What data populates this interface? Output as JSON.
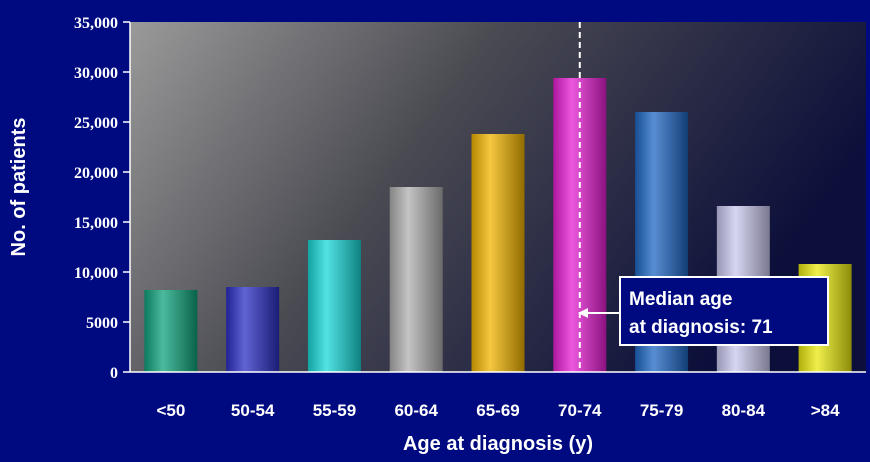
{
  "chart_data": {
    "type": "bar",
    "categories": [
      "<50",
      "50-54",
      "55-59",
      "60-64",
      "65-69",
      "70-74",
      "75-79",
      "80-84",
      ">84"
    ],
    "values": [
      8200,
      8500,
      13200,
      18500,
      23800,
      29400,
      26000,
      16600,
      10800
    ],
    "bar_colors": [
      "#0fa37c",
      "#2b2fc4",
      "#19d8d8",
      "#b0b0b0",
      "#f2b400",
      "#e61fd3",
      "#1f68c4",
      "#c9c8ee",
      "#eaea10"
    ],
    "xlabel": "Age at diagnosis (y)",
    "ylabel": "No. of patients",
    "ylim": [
      0,
      35000
    ],
    "yticks": [
      {
        "value": 0,
        "label": "0"
      },
      {
        "value": 5000,
        "label": "5000"
      },
      {
        "value": 10000,
        "label": "10,000"
      },
      {
        "value": 15000,
        "label": "15,000"
      },
      {
        "value": 20000,
        "label": "20,000"
      },
      {
        "value": 25000,
        "label": "25,000"
      },
      {
        "value": 30000,
        "label": "30,000"
      },
      {
        "value": 35000,
        "label": "35,000"
      }
    ],
    "median_line_category": "70-74",
    "annotation": {
      "line1": "Median age",
      "line2": "at diagnosis: 71"
    },
    "grid": false,
    "background_color": "#000a80"
  }
}
